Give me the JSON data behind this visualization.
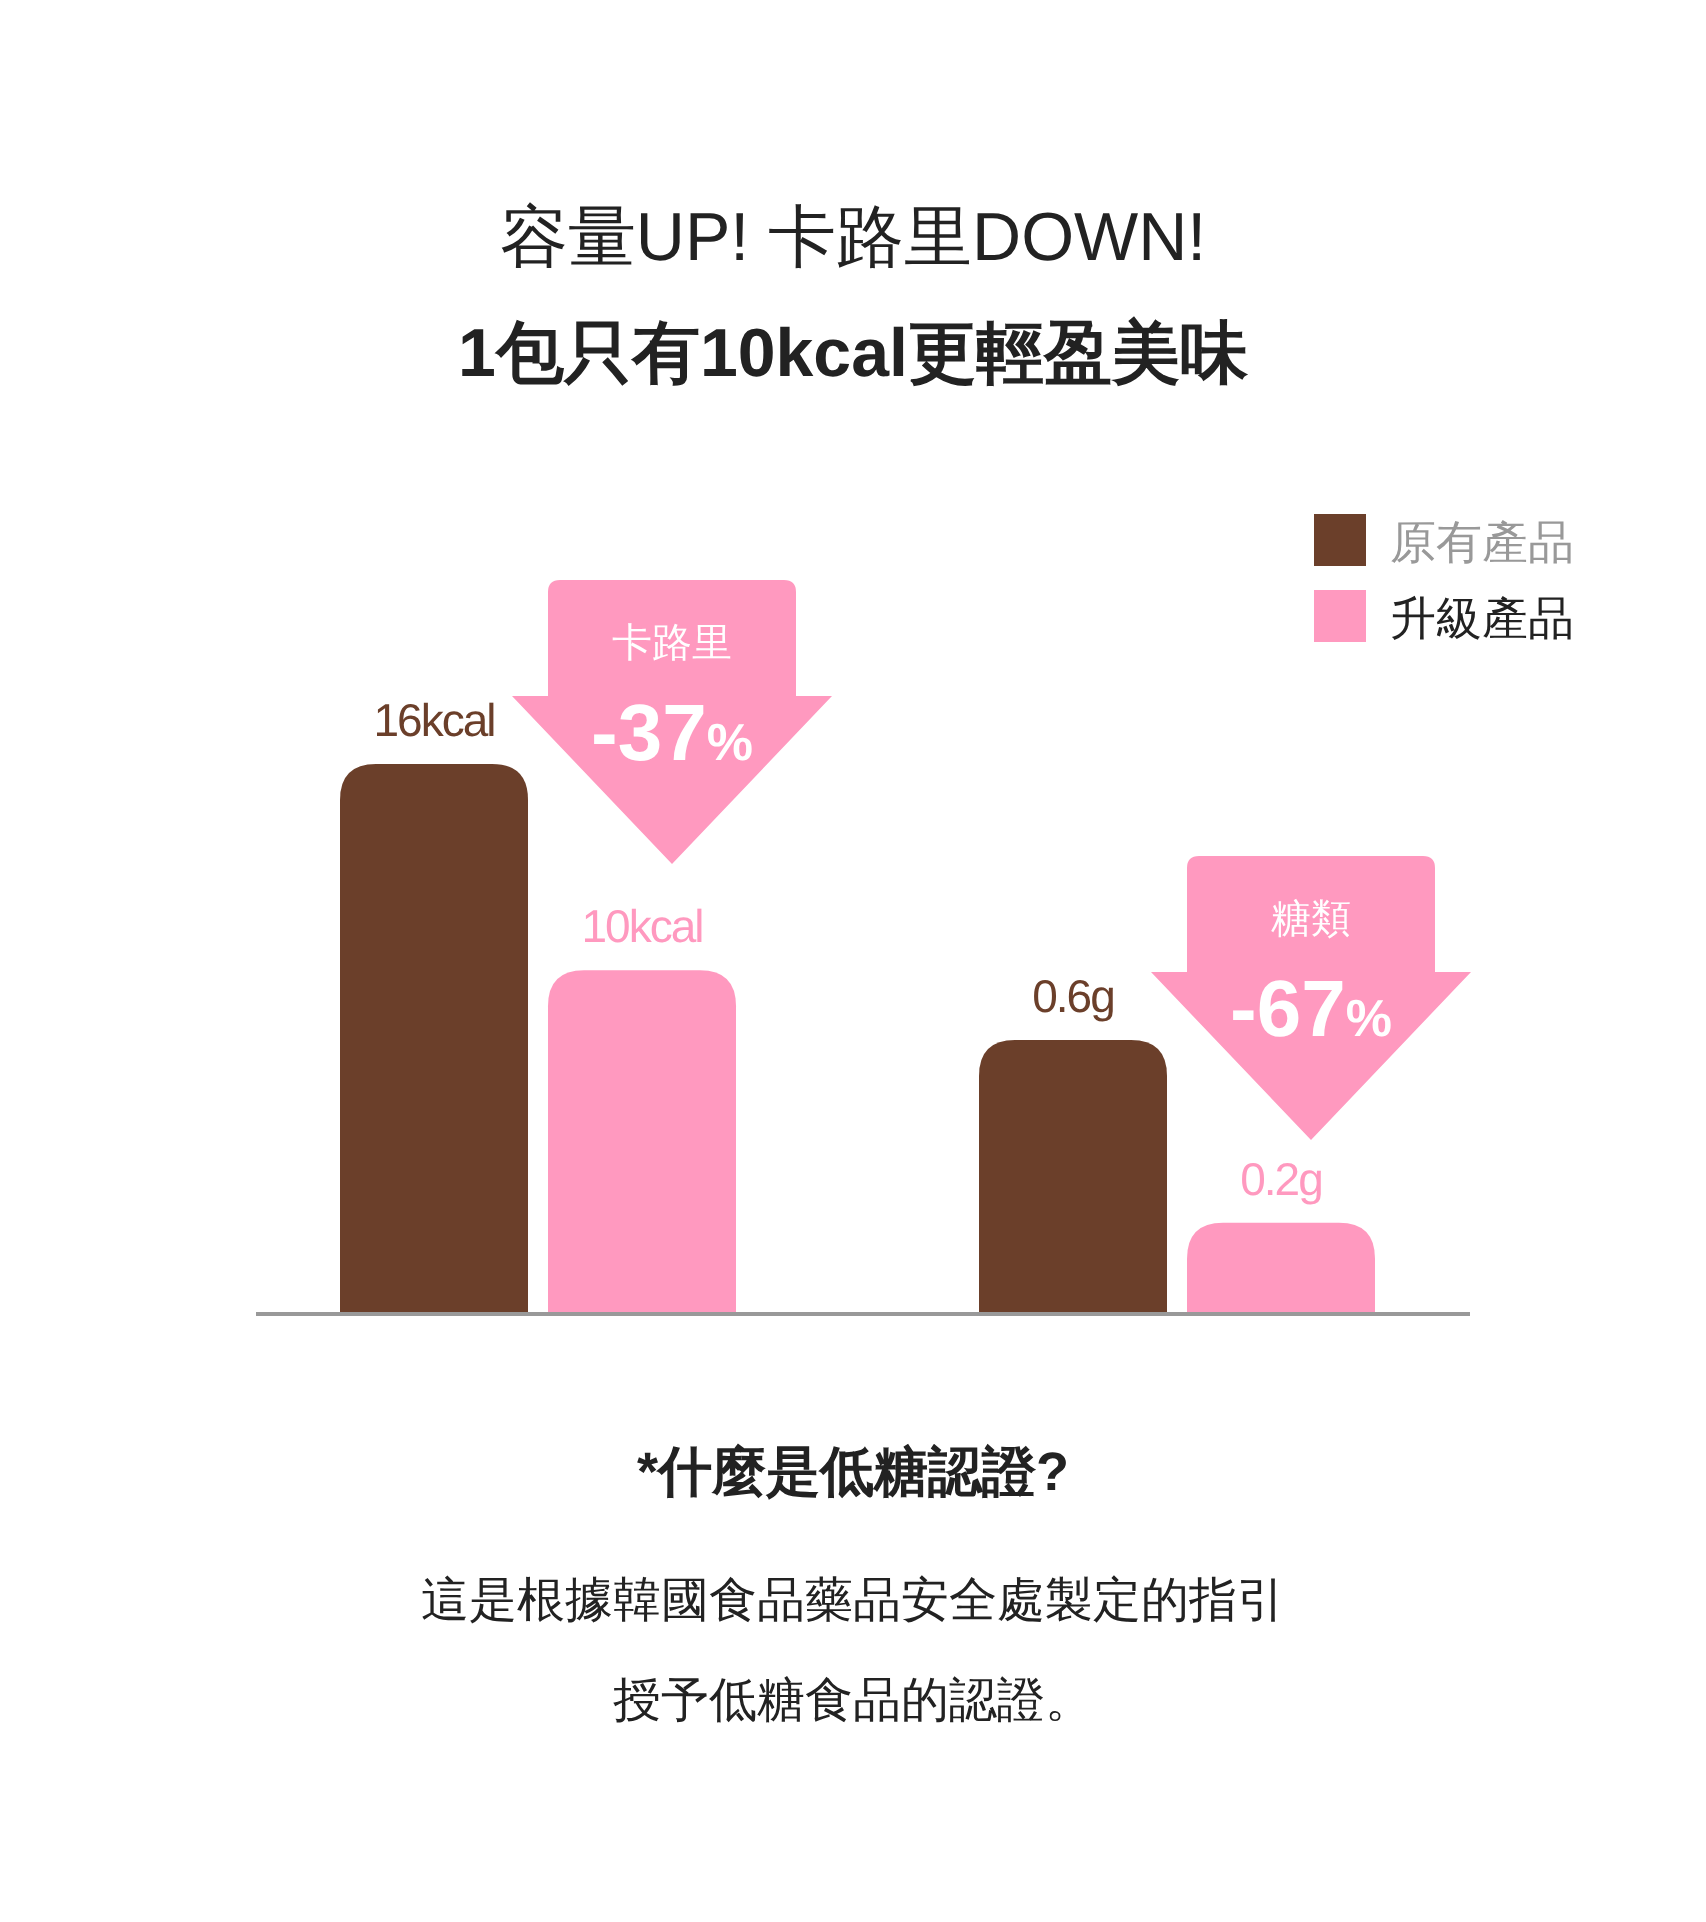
{
  "chart_data": [
    {
      "type": "bar",
      "title": "容量UP! 卡路里DOWN!",
      "subtitle": "1包只有10kcal更輕盈美味",
      "categories": [
        null
      ],
      "series": [
        {
          "color": "#6b3f2a",
          "values": [
            16
          ],
          "value_labels": [
            "16kcal"
          ]
        },
        {
          "color": "#ff99bf",
          "values": [
            10
          ],
          "value_labels": [
            "10kcal"
          ]
        }
      ],
      "annotations": [
        "卡路里",
        "-37%"
      ]
    },
    {
      "type": "bar",
      "categories": [
        null
      ],
      "legend": "top right",
      "series": [
        {
          "name": "原有產品",
          "color": "#6b3f2a",
          "values": [
            0.6
          ],
          "value_labels": [
            "0.6g"
          ]
        },
        {
          "name": "升級產品",
          "color": "#ff99bf",
          "values": [
            0.2
          ],
          "value_labels": [
            "0.2g"
          ]
        }
      ],
      "annotations": [
        "糖類",
        "-67%",
        "*什麼是低糖認證?",
        "這是根據韓國食品藥品安全處製定的指引",
        "授予低糖食品的認證。"
      ]
    }
  ]
}
